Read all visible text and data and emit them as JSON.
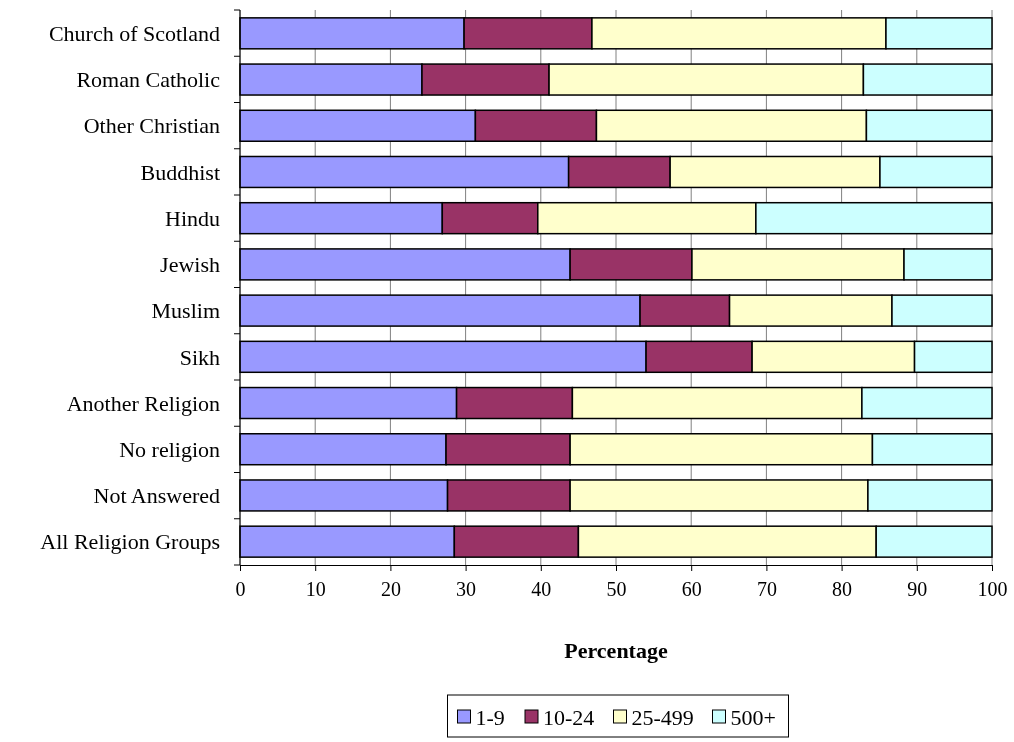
{
  "chart_data": {
    "type": "bar",
    "orientation": "horizontal",
    "stacked": true,
    "xlabel": "Percentage",
    "categories": [
      "Church of Scotland",
      "Roman Catholic",
      "Other Christian",
      "Buddhist",
      "Hindu",
      "Jewish",
      "Muslim",
      "Sikh",
      "Another Religion",
      "No religion",
      "Not Answered",
      "All Religion Groups"
    ],
    "series": [
      {
        "name": "1-9",
        "color": "#9999ff",
        "values": [
          29.8,
          24.2,
          31.3,
          43.7,
          26.9,
          43.9,
          53.2,
          54.0,
          28.8,
          27.4,
          27.6,
          28.5
        ]
      },
      {
        "name": "10-24",
        "color": "#993366",
        "values": [
          17.0,
          16.9,
          16.1,
          13.5,
          12.7,
          16.2,
          11.9,
          14.1,
          15.4,
          16.5,
          16.3,
          16.5
        ]
      },
      {
        "name": "25-499",
        "color": "#ffffcc",
        "values": [
          39.1,
          41.8,
          35.9,
          27.9,
          29.0,
          28.2,
          21.6,
          21.6,
          38.5,
          40.2,
          39.6,
          39.6
        ]
      },
      {
        "name": "500+",
        "color": "#ccffff",
        "values": [
          14.1,
          17.1,
          16.7,
          14.9,
          31.4,
          11.7,
          13.3,
          10.3,
          17.3,
          15.9,
          16.5,
          15.4
        ]
      }
    ],
    "xlim": [
      0,
      100
    ],
    "xticks": [
      0,
      10,
      20,
      30,
      40,
      50,
      60,
      70,
      80,
      90,
      100
    ],
    "grid": "x",
    "legend": "bottom"
  }
}
